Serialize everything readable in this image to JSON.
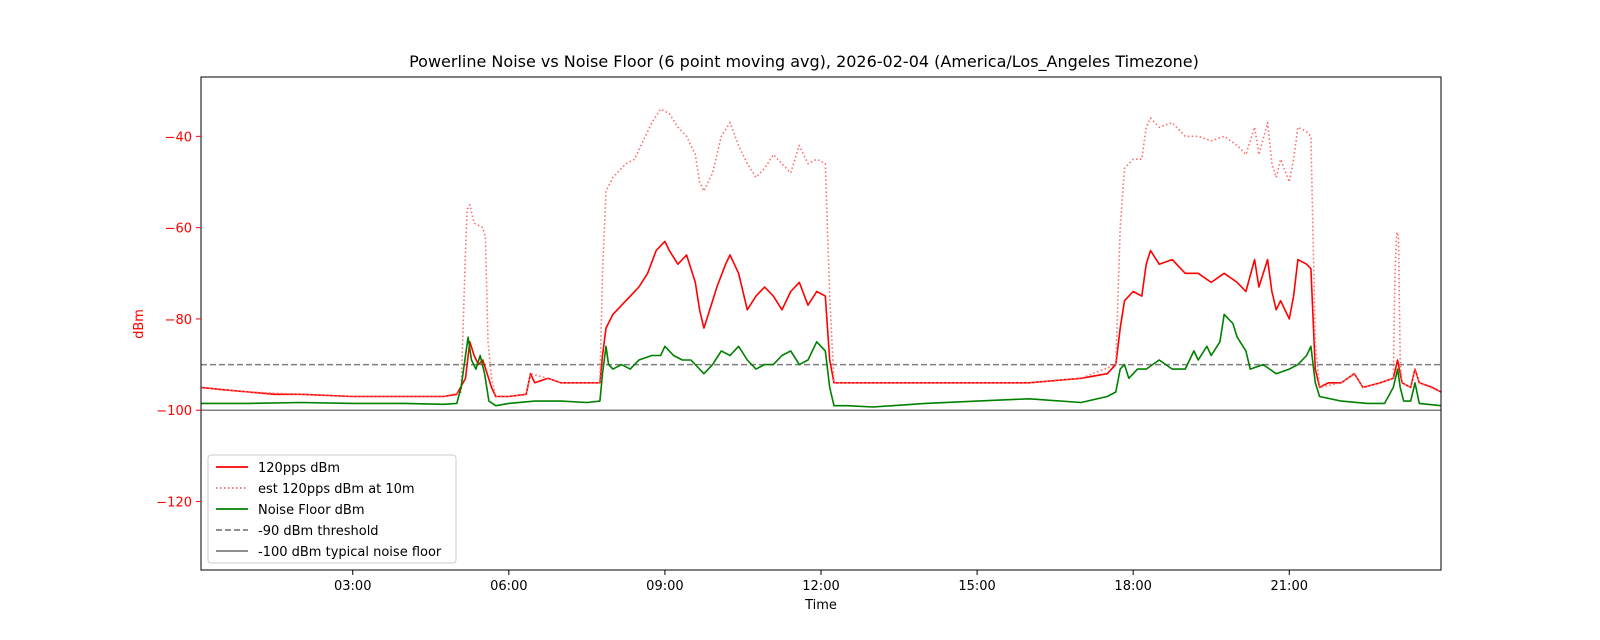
{
  "chart_data": {
    "type": "line",
    "title": "Powerline Noise vs Noise Floor (6 point moving avg), 2026-02-04 (America/Los_Angeles Timezone)",
    "xlabel": "Time",
    "ylabel": "dBm",
    "xlim": [
      "00:05",
      "23:55"
    ],
    "ylim": [
      -135,
      -27
    ],
    "xticks": [
      "03:00",
      "06:00",
      "09:00",
      "12:00",
      "15:00",
      "18:00",
      "21:00"
    ],
    "yticks": [
      -40,
      -60,
      -80,
      -100,
      -120
    ],
    "grid": false,
    "legend_position": "lower-left",
    "hlines": [
      {
        "name": "-90 dBm threshold",
        "y": -90,
        "color": "#808080",
        "style": "dashed"
      },
      {
        "name": "-100 dBm typical noise floor",
        "y": -100,
        "color": "#808080",
        "style": "solid"
      }
    ],
    "series": [
      {
        "name": "120pps dBm",
        "color": "#ff0000",
        "style": "solid",
        "points": [
          [
            "00:05",
            -95
          ],
          [
            "00:30",
            -95.5
          ],
          [
            "01:00",
            -96
          ],
          [
            "01:30",
            -96.5
          ],
          [
            "02:00",
            -96.5
          ],
          [
            "03:00",
            -97
          ],
          [
            "04:00",
            -97
          ],
          [
            "04:45",
            -97
          ],
          [
            "05:00",
            -96.5
          ],
          [
            "05:10",
            -93
          ],
          [
            "05:15",
            -85
          ],
          [
            "05:20",
            -88
          ],
          [
            "05:25",
            -90
          ],
          [
            "05:30",
            -89
          ],
          [
            "05:35",
            -92
          ],
          [
            "05:40",
            -95
          ],
          [
            "05:45",
            -97
          ],
          [
            "06:00",
            -97
          ],
          [
            "06:20",
            -96.5
          ],
          [
            "06:25",
            -92
          ],
          [
            "06:30",
            -94
          ],
          [
            "06:45",
            -93
          ],
          [
            "07:00",
            -94
          ],
          [
            "07:30",
            -94
          ],
          [
            "07:45",
            -94
          ],
          [
            "07:48",
            -88
          ],
          [
            "07:52",
            -82
          ],
          [
            "08:00",
            -79
          ],
          [
            "08:15",
            -76
          ],
          [
            "08:30",
            -73
          ],
          [
            "08:40",
            -70
          ],
          [
            "08:50",
            -65
          ],
          [
            "09:00",
            -63
          ],
          [
            "09:05",
            -65
          ],
          [
            "09:15",
            -68
          ],
          [
            "09:25",
            -66
          ],
          [
            "09:35",
            -72
          ],
          [
            "09:40",
            -78
          ],
          [
            "09:45",
            -82
          ],
          [
            "09:50",
            -79
          ],
          [
            "10:00",
            -73
          ],
          [
            "10:10",
            -68
          ],
          [
            "10:15",
            -66
          ],
          [
            "10:25",
            -70
          ],
          [
            "10:35",
            -78
          ],
          [
            "10:45",
            -75
          ],
          [
            "10:55",
            -73
          ],
          [
            "11:05",
            -75
          ],
          [
            "11:15",
            -78
          ],
          [
            "11:25",
            -74
          ],
          [
            "11:35",
            -72
          ],
          [
            "11:45",
            -77
          ],
          [
            "11:55",
            -74
          ],
          [
            "12:05",
            -75
          ],
          [
            "12:10",
            -89
          ],
          [
            "12:15",
            -94
          ],
          [
            "12:30",
            -94
          ],
          [
            "13:00",
            -94
          ],
          [
            "14:00",
            -94
          ],
          [
            "15:00",
            -94
          ],
          [
            "16:00",
            -94
          ],
          [
            "17:00",
            -93
          ],
          [
            "17:30",
            -92
          ],
          [
            "17:40",
            -90
          ],
          [
            "17:45",
            -82
          ],
          [
            "17:50",
            -76
          ],
          [
            "18:00",
            -74
          ],
          [
            "18:10",
            -75
          ],
          [
            "18:15",
            -68
          ],
          [
            "18:20",
            -65
          ],
          [
            "18:30",
            -68
          ],
          [
            "18:45",
            -67
          ],
          [
            "19:00",
            -70
          ],
          [
            "19:15",
            -70
          ],
          [
            "19:30",
            -72
          ],
          [
            "19:45",
            -70
          ],
          [
            "20:00",
            -72
          ],
          [
            "20:10",
            -74
          ],
          [
            "20:20",
            -67
          ],
          [
            "20:25",
            -73
          ],
          [
            "20:35",
            -67
          ],
          [
            "20:40",
            -74
          ],
          [
            "20:45",
            -78
          ],
          [
            "20:50",
            -76
          ],
          [
            "21:00",
            -80
          ],
          [
            "21:05",
            -75
          ],
          [
            "21:10",
            -67
          ],
          [
            "21:20",
            -68
          ],
          [
            "21:25",
            -69
          ],
          [
            "21:30",
            -91
          ],
          [
            "21:35",
            -95
          ],
          [
            "21:45",
            -94
          ],
          [
            "22:00",
            -94
          ],
          [
            "22:15",
            -92
          ],
          [
            "22:25",
            -95
          ],
          [
            "22:45",
            -94
          ],
          [
            "23:00",
            -93
          ],
          [
            "23:05",
            -89
          ],
          [
            "23:10",
            -94
          ],
          [
            "23:20",
            -95
          ],
          [
            "23:25",
            -91
          ],
          [
            "23:30",
            -94
          ],
          [
            "23:45",
            -95
          ],
          [
            "23:55",
            -96
          ]
        ]
      },
      {
        "name": "est 120pps dBm at 10m",
        "color": "#ff6b6b",
        "style": "dotted",
        "points": [
          [
            "00:05",
            -95
          ],
          [
            "01:00",
            -96
          ],
          [
            "02:00",
            -96.5
          ],
          [
            "03:00",
            -97
          ],
          [
            "04:00",
            -97
          ],
          [
            "04:45",
            -97
          ],
          [
            "05:05",
            -96
          ],
          [
            "05:10",
            -65
          ],
          [
            "05:12",
            -56
          ],
          [
            "05:15",
            -55
          ],
          [
            "05:20",
            -59
          ],
          [
            "05:30",
            -60
          ],
          [
            "05:33",
            -62
          ],
          [
            "05:36",
            -85
          ],
          [
            "05:40",
            -93
          ],
          [
            "05:45",
            -97
          ],
          [
            "06:00",
            -97
          ],
          [
            "06:20",
            -96.5
          ],
          [
            "06:25",
            -92
          ],
          [
            "06:45",
            -93
          ],
          [
            "07:00",
            -94
          ],
          [
            "07:45",
            -94
          ],
          [
            "07:48",
            -70
          ],
          [
            "07:52",
            -52
          ],
          [
            "08:00",
            -49
          ],
          [
            "08:15",
            -46
          ],
          [
            "08:25",
            -45
          ],
          [
            "08:35",
            -41
          ],
          [
            "08:45",
            -37
          ],
          [
            "08:55",
            -34
          ],
          [
            "09:05",
            -35
          ],
          [
            "09:15",
            -38
          ],
          [
            "09:25",
            -40
          ],
          [
            "09:35",
            -44
          ],
          [
            "09:40",
            -50
          ],
          [
            "09:45",
            -52
          ],
          [
            "09:55",
            -48
          ],
          [
            "10:05",
            -40
          ],
          [
            "10:15",
            -37
          ],
          [
            "10:25",
            -42
          ],
          [
            "10:35",
            -46
          ],
          [
            "10:45",
            -49
          ],
          [
            "10:55",
            -47
          ],
          [
            "11:05",
            -44
          ],
          [
            "11:15",
            -46
          ],
          [
            "11:25",
            -48
          ],
          [
            "11:35",
            -42
          ],
          [
            "11:45",
            -46
          ],
          [
            "11:55",
            -45
          ],
          [
            "12:05",
            -46
          ],
          [
            "12:10",
            -75
          ],
          [
            "12:15",
            -94
          ],
          [
            "13:00",
            -94
          ],
          [
            "14:00",
            -94
          ],
          [
            "15:00",
            -94
          ],
          [
            "16:00",
            -94
          ],
          [
            "17:00",
            -93
          ],
          [
            "17:40",
            -90
          ],
          [
            "17:45",
            -60
          ],
          [
            "17:50",
            -47
          ],
          [
            "18:00",
            -45
          ],
          [
            "18:10",
            -45
          ],
          [
            "18:15",
            -38
          ],
          [
            "18:20",
            -36
          ],
          [
            "18:30",
            -38
          ],
          [
            "18:45",
            -37
          ],
          [
            "19:00",
            -40
          ],
          [
            "19:15",
            -40
          ],
          [
            "19:30",
            -41
          ],
          [
            "19:45",
            -40
          ],
          [
            "20:00",
            -42
          ],
          [
            "20:10",
            -44
          ],
          [
            "20:20",
            -38
          ],
          [
            "20:25",
            -44
          ],
          [
            "20:35",
            -37
          ],
          [
            "20:40",
            -46
          ],
          [
            "20:45",
            -49
          ],
          [
            "20:50",
            -45
          ],
          [
            "21:00",
            -50
          ],
          [
            "21:05",
            -45
          ],
          [
            "21:10",
            -38
          ],
          [
            "21:20",
            -39
          ],
          [
            "21:25",
            -40
          ],
          [
            "21:30",
            -85
          ],
          [
            "21:35",
            -95
          ],
          [
            "22:00",
            -94
          ],
          [
            "22:15",
            -92
          ],
          [
            "22:25",
            -95
          ],
          [
            "22:45",
            -94
          ],
          [
            "23:00",
            -93
          ],
          [
            "23:02",
            -70
          ],
          [
            "23:04",
            -61
          ],
          [
            "23:06",
            -62
          ],
          [
            "23:08",
            -89
          ],
          [
            "23:10",
            -94
          ],
          [
            "23:20",
            -95
          ],
          [
            "23:25",
            -91
          ],
          [
            "23:30",
            -94
          ],
          [
            "23:55",
            -96
          ]
        ]
      },
      {
        "name": "Noise Floor dBm",
        "color": "#008000",
        "style": "solid",
        "points": [
          [
            "00:05",
            -98.5
          ],
          [
            "01:00",
            -98.5
          ],
          [
            "02:00",
            -98.3
          ],
          [
            "03:00",
            -98.5
          ],
          [
            "04:00",
            -98.5
          ],
          [
            "04:45",
            -98.7
          ],
          [
            "05:00",
            -98.5
          ],
          [
            "05:05",
            -95
          ],
          [
            "05:10",
            -88
          ],
          [
            "05:13",
            -84
          ],
          [
            "05:17",
            -89
          ],
          [
            "05:22",
            -91
          ],
          [
            "05:27",
            -88
          ],
          [
            "05:32",
            -92
          ],
          [
            "05:37",
            -98
          ],
          [
            "05:45",
            -99
          ],
          [
            "06:00",
            -98.5
          ],
          [
            "06:30",
            -98
          ],
          [
            "07:00",
            -98
          ],
          [
            "07:30",
            -98.3
          ],
          [
            "07:45",
            -98
          ],
          [
            "07:48",
            -92
          ],
          [
            "07:52",
            -86
          ],
          [
            "07:55",
            -90
          ],
          [
            "08:00",
            -91
          ],
          [
            "08:10",
            -90
          ],
          [
            "08:20",
            -91
          ],
          [
            "08:30",
            -89
          ],
          [
            "08:45",
            -88
          ],
          [
            "08:55",
            -88
          ],
          [
            "09:00",
            -86
          ],
          [
            "09:10",
            -88
          ],
          [
            "09:20",
            -89
          ],
          [
            "09:30",
            -89
          ],
          [
            "09:45",
            -92
          ],
          [
            "09:55",
            -90
          ],
          [
            "10:05",
            -87
          ],
          [
            "10:15",
            -88
          ],
          [
            "10:25",
            -86
          ],
          [
            "10:35",
            -89
          ],
          [
            "10:45",
            -91
          ],
          [
            "10:55",
            -90
          ],
          [
            "11:05",
            -90
          ],
          [
            "11:15",
            -88
          ],
          [
            "11:25",
            -87
          ],
          [
            "11:35",
            -90
          ],
          [
            "11:45",
            -89
          ],
          [
            "11:55",
            -85
          ],
          [
            "12:05",
            -87
          ],
          [
            "12:10",
            -95
          ],
          [
            "12:15",
            -99
          ],
          [
            "12:30",
            -99
          ],
          [
            "13:00",
            -99.3
          ],
          [
            "14:00",
            -98.5
          ],
          [
            "15:00",
            -98
          ],
          [
            "16:00",
            -97.5
          ],
          [
            "17:00",
            -98.3
          ],
          [
            "17:30",
            -97
          ],
          [
            "17:40",
            -96
          ],
          [
            "17:45",
            -91
          ],
          [
            "17:50",
            -90
          ],
          [
            "17:55",
            -93
          ],
          [
            "18:05",
            -91
          ],
          [
            "18:15",
            -91
          ],
          [
            "18:30",
            -89
          ],
          [
            "18:45",
            -91
          ],
          [
            "19:00",
            -91
          ],
          [
            "19:10",
            -87
          ],
          [
            "19:15",
            -89
          ],
          [
            "19:25",
            -86
          ],
          [
            "19:30",
            -88
          ],
          [
            "19:40",
            -85
          ],
          [
            "19:45",
            -79
          ],
          [
            "19:55",
            -81
          ],
          [
            "20:00",
            -84
          ],
          [
            "20:10",
            -87
          ],
          [
            "20:15",
            -91
          ],
          [
            "20:30",
            -90
          ],
          [
            "20:45",
            -92
          ],
          [
            "21:00",
            -91
          ],
          [
            "21:10",
            -90
          ],
          [
            "21:20",
            -88
          ],
          [
            "21:25",
            -86
          ],
          [
            "21:30",
            -94
          ],
          [
            "21:35",
            -97
          ],
          [
            "22:00",
            -98
          ],
          [
            "22:30",
            -98.5
          ],
          [
            "22:50",
            -98.5
          ],
          [
            "23:00",
            -95
          ],
          [
            "23:05",
            -91
          ],
          [
            "23:08",
            -95
          ],
          [
            "23:12",
            -98
          ],
          [
            "23:20",
            -98
          ],
          [
            "23:25",
            -94
          ],
          [
            "23:30",
            -98.5
          ],
          [
            "23:55",
            -99
          ]
        ]
      }
    ]
  }
}
